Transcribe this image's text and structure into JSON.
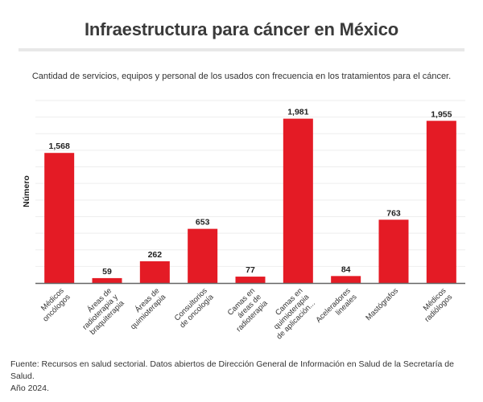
{
  "header": {
    "title": "Infraestructura para cáncer en México",
    "subtitle": "Cantidad de servicios, equipos y personal de los usados con frecuencia en los tratamientos para el cáncer."
  },
  "footer": {
    "source_line1": "Fuente: Recursos en salud sectorial. Datos abiertos de Dirección General de Información en Salud de la Secretaría de Salud.",
    "source_line2": "Año 2024."
  },
  "colors": {
    "bar": "#e41b25",
    "grid": "#eeeeee",
    "axis": "#666666"
  },
  "chart_data": {
    "type": "bar",
    "title": "Infraestructura para cáncer en México",
    "subtitle": "Cantidad de servicios, equipos y personal de los usados con frecuencia en los tratamientos para el cáncer.",
    "xlabel": "",
    "ylabel": "Número",
    "ylim": [
      0,
      2200
    ],
    "grid": true,
    "grid_step": 200,
    "y_tick_labels_shown": false,
    "categories": [
      [
        "Médicos",
        "oncólogos"
      ],
      [
        "Áreas de",
        "radioterapia y",
        "braquiterapia"
      ],
      [
        "Áreas de",
        "quimioterapia"
      ],
      [
        "Consultorios",
        "de oncología"
      ],
      [
        "Camas en",
        "áreas de",
        "radioterapia"
      ],
      [
        "Camas en",
        "quimioterapia",
        "de aplicación..."
      ],
      [
        "Aceleradores",
        "lineales"
      ],
      [
        "Mastógrafos"
      ],
      [
        "Médicos",
        "radiólogos"
      ]
    ],
    "values": [
      1568,
      59,
      262,
      653,
      77,
      1981,
      84,
      763,
      1955
    ],
    "data_labels": [
      "1,568",
      "59",
      "262",
      "653",
      "77",
      "1,981",
      "84",
      "763",
      "1,955"
    ]
  }
}
